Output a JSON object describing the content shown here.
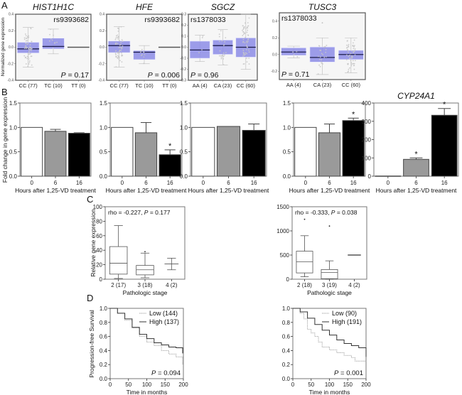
{
  "panel_labels": [
    "A",
    "B",
    "C",
    "D"
  ],
  "chart_data": [
    {
      "type": "boxplot",
      "panel": "A",
      "title": "HIST1H1C",
      "ylabel": "Normalized gene expression",
      "annotation": "rs9393682",
      "p_text": "P = 0.17",
      "ylim": [
        -0.4,
        0.4
      ],
      "yticks": [
        "0.4",
        "0.2",
        "0.0",
        "-0.2",
        "-0.4"
      ],
      "categories": [
        "CC (77)",
        "TC (10)",
        "TT (0)"
      ],
      "boxes": [
        {
          "lo": -0.24,
          "q1": -0.07,
          "med": -0.02,
          "q3": 0.06,
          "hi": 0.24
        },
        {
          "lo": -0.08,
          "q1": -0.02,
          "med": 0.01,
          "q3": 0.11,
          "hi": 0.22
        },
        {
          "med": 0.0
        }
      ],
      "box_color": "#8c8ce6"
    },
    {
      "type": "boxplot",
      "panel": "A",
      "title": "HFE",
      "annotation": "rs9393682",
      "p_text": "P = 0.006",
      "ylim": [
        -0.4,
        0.4
      ],
      "yticks": [
        "0.4",
        "0.2",
        "0.0",
        "-0.2",
        "-0.4"
      ],
      "categories": [
        "CC (77)",
        "TC (10)",
        "TT (0)"
      ],
      "boxes": [
        {
          "lo": -0.24,
          "q1": -0.065,
          "med": 0.02,
          "q3": 0.075,
          "hi": 0.25
        },
        {
          "lo": -0.2,
          "q1": -0.15,
          "med": -0.06,
          "q3": -0.04,
          "hi": 0.02
        },
        {
          "med": 0.0
        }
      ],
      "box_color": "#8c8ce6"
    },
    {
      "type": "boxplot",
      "panel": "A",
      "title": "SGCZ",
      "annotation": "rs1378033",
      "p_text": "P = 0.96",
      "ylim": [
        -0.3,
        0.3
      ],
      "yticks": [
        "0.3",
        "0.2",
        "0.1",
        "0.0",
        "-0.1",
        "-0.2",
        "-0.3"
      ],
      "categories": [
        "AA (4)",
        "CA (23)",
        "CC (60)"
      ],
      "boxes": [
        {
          "lo": -0.13,
          "q1": -0.1,
          "med": -0.025,
          "q3": 0.055,
          "hi": 0.11
        },
        {
          "lo": -0.16,
          "q1": -0.065,
          "med": 0.015,
          "q3": 0.065,
          "hi": 0.16
        },
        {
          "lo": -0.2,
          "q1": -0.09,
          "med": 0.0,
          "q3": 0.085,
          "hi": 0.3
        }
      ],
      "box_color": "#8c8ce6"
    },
    {
      "type": "boxplot",
      "panel": "A",
      "title": "TUSC3",
      "annotation": "rs1378033",
      "p_text": "P = 0.71",
      "ylim": [
        -0.3,
        0.5
      ],
      "yticks": [
        "0.4",
        "0.2",
        "0.0",
        "-0.2"
      ],
      "categories": [
        "AA (4)",
        "CA (23)",
        "CC (60)"
      ],
      "boxes": [
        {
          "lo": -0.04,
          "q1": -0.01,
          "med": 0.03,
          "q3": 0.08,
          "hi": 0.1
        },
        {
          "lo": -0.24,
          "q1": -0.09,
          "med": -0.035,
          "q3": 0.09,
          "hi": 0.2,
          "outliers": [
            0.38
          ]
        },
        {
          "lo": -0.22,
          "q1": -0.06,
          "med": 0.0,
          "q3": 0.05,
          "hi": 0.2
        }
      ],
      "box_color": "#8c8ce6"
    },
    {
      "type": "bar",
      "panel": "B",
      "title": "",
      "ylabel": "Fold change in gene expression",
      "xlabel": "Hours after 1,25-VD treatment",
      "categories": [
        "0",
        "6",
        "16"
      ],
      "values": [
        1.0,
        0.92,
        0.88
      ],
      "errors": [
        0,
        0.04,
        0.01
      ],
      "significant": [
        false,
        false,
        false
      ],
      "ylim": [
        0,
        1.5
      ],
      "yticks": [
        "0.0",
        "0.5",
        "1.0",
        "1.5"
      ]
    },
    {
      "type": "bar",
      "panel": "B",
      "title": "",
      "xlabel": "Hours after 1,25-VD treatment",
      "categories": [
        "0",
        "6",
        "16"
      ],
      "values": [
        1.0,
        0.89,
        0.44
      ],
      "errors": [
        0,
        0.21,
        0.1
      ],
      "significant": [
        false,
        false,
        true
      ],
      "ylim": [
        0,
        1.5
      ],
      "yticks": [
        "0.0",
        "0.5",
        "1.0",
        "1.5"
      ]
    },
    {
      "type": "bar",
      "panel": "B",
      "title": "",
      "xlabel": "Hours after 1,25-VD treatment",
      "categories": [
        "0",
        "6",
        "16"
      ],
      "values": [
        1.0,
        1.02,
        0.94
      ],
      "errors": [
        0,
        0.0,
        0.13
      ],
      "significant": [
        false,
        false,
        false
      ],
      "ylim": [
        0,
        1.5
      ],
      "yticks": [
        "0.0",
        "0.5",
        "1.0",
        "1.5"
      ]
    },
    {
      "type": "bar",
      "panel": "B",
      "title": "",
      "xlabel": "Hours after 1,25-VD treatment",
      "categories": [
        "0",
        "6",
        "16"
      ],
      "values": [
        1.0,
        0.89,
        1.14
      ],
      "errors": [
        0,
        0.18,
        0.05
      ],
      "significant": [
        false,
        false,
        true
      ],
      "ylim": [
        0,
        1.5
      ],
      "yticks": [
        "0.0",
        "0.5",
        "1.0",
        "1.5"
      ]
    },
    {
      "type": "bar",
      "panel": "B",
      "title": "CYP24A1",
      "xlabel": "Hours after 1,25-VD treatment",
      "categories": [
        "0",
        "6",
        "16"
      ],
      "values": [
        1,
        92,
        333
      ],
      "errors": [
        0,
        8,
        37
      ],
      "significant": [
        false,
        true,
        true
      ],
      "ylim": [
        0,
        400
      ],
      "yticks": [
        "0",
        "100",
        "200",
        "300",
        "400"
      ]
    },
    {
      "type": "boxplot",
      "panel": "C",
      "ylabel": "Relative gene expression",
      "xlabel": "Pathologic stage",
      "annotation": "rho = -0.227, P = 0.177",
      "ylim": [
        0,
        100
      ],
      "yticks": [
        "0",
        "20",
        "40",
        "60",
        "80",
        "100"
      ],
      "categories": [
        "2 (17)",
        "3 (18)",
        "4 (2)"
      ],
      "boxes": [
        {
          "lo": 1,
          "q1": 7,
          "med": 22,
          "q3": 45,
          "hi": 74
        },
        {
          "lo": 2,
          "q1": 6,
          "med": 13,
          "q3": 19,
          "hi": 36,
          "outliers": [
            38
          ]
        },
        {
          "lo": 13,
          "med": 21,
          "hi": 29
        }
      ]
    },
    {
      "type": "boxplot",
      "panel": "C",
      "xlabel": "Pathologic stage",
      "annotation": "rho = -0.333, P = 0.038",
      "ylim": [
        0,
        1500
      ],
      "yticks": [
        "0",
        "500",
        "1000",
        "1500"
      ],
      "categories": [
        "2 (18)",
        "3 (19)",
        "4 (2)"
      ],
      "boxes": [
        {
          "lo": 50,
          "q1": 130,
          "med": 360,
          "q3": 580,
          "hi": 900,
          "outliers": [
            1240
          ]
        },
        {
          "lo": 0,
          "q1": 10,
          "med": 140,
          "q3": 200,
          "hi": 380,
          "outliers": [
            1100
          ]
        },
        {
          "med": 500
        }
      ]
    },
    {
      "type": "line",
      "panel": "D",
      "ylabel": "Progression-free Survival",
      "xlabel": "Time in months",
      "p_text": "P = 0.094",
      "xlim": [
        0,
        200
      ],
      "ylim": [
        0,
        1.0
      ],
      "xticks": [
        "0",
        "50",
        "100",
        "150",
        "200"
      ],
      "yticks": [
        "0.0",
        "0.2",
        "0.4",
        "0.6",
        "0.8",
        "1.0"
      ],
      "legend_position": "top-right",
      "series": [
        {
          "name": "Low (144)",
          "color": "#aaaaaa",
          "x": [
            0,
            20,
            40,
            60,
            80,
            100,
            120,
            140,
            160,
            180,
            198,
            198
          ],
          "y": [
            1.0,
            0.93,
            0.83,
            0.72,
            0.6,
            0.52,
            0.47,
            0.4,
            0.35,
            0.31,
            0.31,
            0.2
          ]
        },
        {
          "name": "High (137)",
          "color": "#333333",
          "x": [
            0,
            20,
            40,
            60,
            80,
            100,
            120,
            140,
            160,
            180,
            198,
            198
          ],
          "y": [
            1.0,
            0.93,
            0.85,
            0.73,
            0.63,
            0.57,
            0.51,
            0.48,
            0.45,
            0.44,
            0.44,
            0.36
          ]
        }
      ]
    },
    {
      "type": "line",
      "panel": "D",
      "xlabel": "Time in months",
      "p_text": "P = 0.001",
      "xlim": [
        0,
        200
      ],
      "ylim": [
        0,
        1.0
      ],
      "xticks": [
        "0",
        "50",
        "100",
        "150",
        "200"
      ],
      "yticks": [
        "0.0",
        "0.2",
        "0.4",
        "0.6",
        "0.8",
        "1.0"
      ],
      "legend_position": "top-right",
      "series": [
        {
          "name": "Low (90)",
          "color": "#aaaaaa",
          "x": [
            0,
            20,
            30,
            40,
            50,
            60,
            70,
            80,
            100,
            120,
            140,
            160,
            170,
            200
          ],
          "y": [
            1.0,
            0.93,
            0.85,
            0.7,
            0.65,
            0.6,
            0.52,
            0.45,
            0.41,
            0.37,
            0.33,
            0.3,
            0.25,
            0.25
          ]
        },
        {
          "name": "High (191)",
          "color": "#333333",
          "x": [
            0,
            20,
            40,
            60,
            80,
            100,
            120,
            140,
            160,
            180,
            198,
            200
          ],
          "y": [
            1.0,
            0.95,
            0.86,
            0.77,
            0.69,
            0.62,
            0.55,
            0.5,
            0.47,
            0.44,
            0.44,
            0.31
          ]
        }
      ]
    }
  ]
}
